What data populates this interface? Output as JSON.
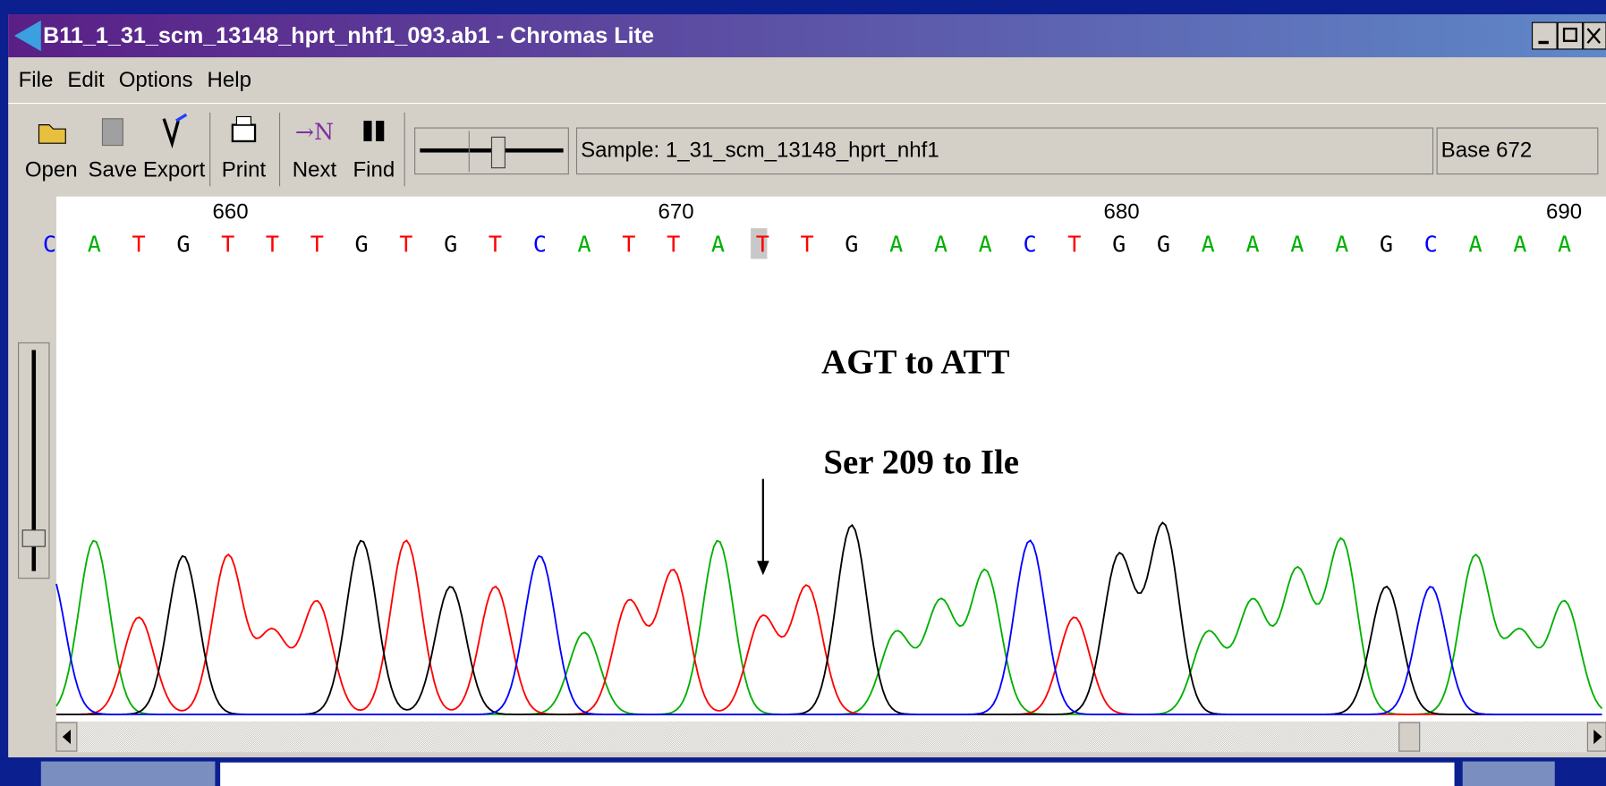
{
  "window": {
    "title": "B11_1_31_scm_13148_hprt_nhf1_093.ab1 - Chromas Lite",
    "menu": [
      "File",
      "Edit",
      "Options",
      "Help"
    ],
    "toolbar": [
      "Open",
      "Save",
      "Export",
      "Print",
      "Next",
      "Find"
    ],
    "sample": "Sample: 1_31_scm_13148_hprt_nhf1",
    "base": "Base 672"
  },
  "ruler": [
    "660",
    "670",
    "680",
    "690"
  ],
  "sequence": [
    "C",
    "A",
    "T",
    "G",
    "T",
    "T",
    "T",
    "G",
    "T",
    "G",
    "T",
    "C",
    "A",
    "T",
    "T",
    "A",
    "T",
    "T",
    "G",
    "A",
    "A",
    "A",
    "C",
    "T",
    "G",
    "G",
    "A",
    "A",
    "A",
    "A",
    "G",
    "C",
    "A",
    "A",
    "A"
  ],
  "annotations": [
    "AGT to ATT",
    "Ser 209 to Ile"
  ]
}
